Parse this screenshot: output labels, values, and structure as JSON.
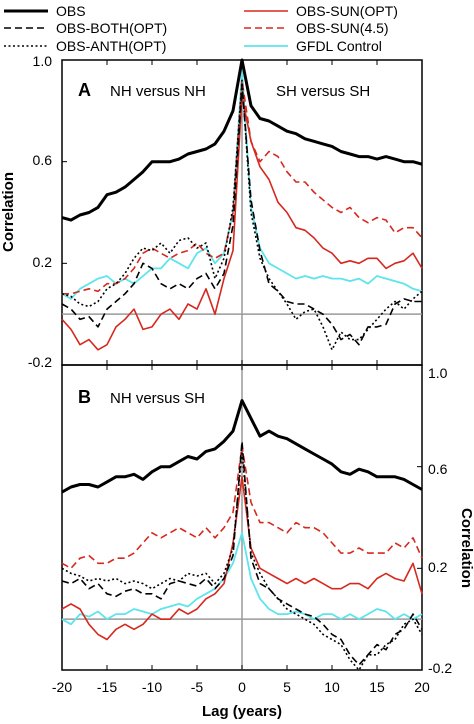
{
  "legend": [
    {
      "key": "obs",
      "label": "OBS",
      "color": "#000000",
      "dash": "",
      "width": 3
    },
    {
      "key": "both",
      "label": "OBS-BOTH(OPT)",
      "color": "#000000",
      "dash": "7,4",
      "width": 1.6
    },
    {
      "key": "anth",
      "label": "OBS-ANTH(OPT)",
      "color": "#000000",
      "dash": "2,2.5",
      "width": 1.6
    },
    {
      "key": "sun_opt",
      "label": "OBS-SUN(OPT)",
      "color": "#d7281e",
      "dash": "",
      "width": 1.6
    },
    {
      "key": "sun45",
      "label": "OBS-SUN(4.5)",
      "color": "#d7281e",
      "dash": "7,4",
      "width": 1.6
    },
    {
      "key": "gfdl",
      "label": "GFDL Control",
      "color": "#5ee4ec",
      "dash": "",
      "width": 1.8
    }
  ],
  "xlabel": "Lag (years)",
  "chart_data": [
    {
      "type": "line",
      "panel": "A",
      "annotation_left": "NH versus NH",
      "annotation_right": "SH versus SH",
      "ylabel": "Correlation",
      "ytick_labels": [
        "-0.2",
        "0.2",
        "0.6",
        "1.0"
      ],
      "xlim": [
        -20,
        20
      ],
      "ylim": [
        -0.2,
        1.0
      ],
      "x": [
        -20,
        -19,
        -18,
        -17,
        -16,
        -15,
        -14,
        -13,
        -12,
        -11,
        -10,
        -9,
        -8,
        -7,
        -6,
        -5,
        -4,
        -3,
        -2,
        -1,
        0,
        1,
        2,
        3,
        4,
        5,
        6,
        7,
        8,
        9,
        10,
        11,
        12,
        13,
        14,
        15,
        16,
        17,
        18,
        19,
        20
      ],
      "series": [
        {
          "key": "obs",
          "values": [
            0.38,
            0.37,
            0.39,
            0.4,
            0.42,
            0.47,
            0.48,
            0.5,
            0.53,
            0.56,
            0.6,
            0.6,
            0.6,
            0.61,
            0.63,
            0.64,
            0.65,
            0.67,
            0.72,
            0.8,
            1.0,
            0.82,
            0.77,
            0.76,
            0.74,
            0.72,
            0.71,
            0.69,
            0.68,
            0.67,
            0.66,
            0.64,
            0.63,
            0.62,
            0.62,
            0.61,
            0.62,
            0.61,
            0.6,
            0.6,
            0.59
          ]
        },
        {
          "key": "both",
          "values": [
            0.04,
            0.02,
            -0.02,
            -0.01,
            -0.05,
            0.02,
            0.05,
            0.08,
            0.12,
            0.2,
            0.18,
            0.12,
            0.1,
            0.12,
            0.1,
            0.14,
            0.16,
            0.1,
            0.16,
            0.35,
            0.9,
            0.45,
            0.25,
            0.12,
            0.09,
            0.05,
            0.04,
            0.04,
            0.02,
            0.0,
            -0.04,
            -0.1,
            -0.08,
            -0.12,
            -0.05,
            -0.05,
            -0.04,
            0.04,
            0.06,
            0.05,
            0.05
          ]
        },
        {
          "key": "anth",
          "values": [
            0.08,
            0.07,
            0.04,
            0.03,
            0.05,
            0.1,
            0.12,
            0.16,
            0.22,
            0.26,
            0.25,
            0.28,
            0.24,
            0.29,
            0.3,
            0.26,
            0.28,
            0.14,
            0.22,
            0.42,
            0.92,
            0.4,
            0.22,
            0.14,
            0.09,
            0.04,
            -0.02,
            0.01,
            0.02,
            -0.05,
            -0.14,
            -0.07,
            -0.1,
            -0.1,
            -0.06,
            -0.02,
            0.02,
            0.05,
            0.02,
            0.06,
            0.09
          ]
        },
        {
          "key": "sun_opt",
          "values": [
            -0.02,
            -0.06,
            -0.12,
            -0.1,
            -0.14,
            -0.12,
            -0.05,
            -0.02,
            0.02,
            -0.06,
            -0.05,
            0.0,
            0.02,
            -0.02,
            0.04,
            0.02,
            0.1,
            0.0,
            0.14,
            0.25,
            0.86,
            0.68,
            0.58,
            0.53,
            0.44,
            0.4,
            0.34,
            0.33,
            0.3,
            0.26,
            0.24,
            0.2,
            0.21,
            0.2,
            0.22,
            0.22,
            0.18,
            0.2,
            0.21,
            0.24,
            0.18
          ]
        },
        {
          "key": "sun45",
          "values": [
            0.08,
            0.08,
            0.09,
            0.1,
            0.09,
            0.12,
            0.12,
            0.14,
            0.18,
            0.24,
            0.26,
            0.24,
            0.22,
            0.24,
            0.25,
            0.28,
            0.24,
            0.22,
            0.24,
            0.4,
            0.92,
            0.68,
            0.6,
            0.64,
            0.62,
            0.56,
            0.52,
            0.52,
            0.48,
            0.45,
            0.42,
            0.4,
            0.42,
            0.38,
            0.36,
            0.38,
            0.37,
            0.32,
            0.34,
            0.34,
            0.3
          ]
        },
        {
          "key": "gfdl",
          "values": [
            0.08,
            0.06,
            0.1,
            0.12,
            0.14,
            0.15,
            0.12,
            0.14,
            0.12,
            0.15,
            0.18,
            0.18,
            0.22,
            0.2,
            0.18,
            0.24,
            0.26,
            0.2,
            0.24,
            0.4,
            0.96,
            0.42,
            0.26,
            0.2,
            0.18,
            0.16,
            0.14,
            0.15,
            0.14,
            0.15,
            0.14,
            0.14,
            0.13,
            0.14,
            0.12,
            0.15,
            0.14,
            0.13,
            0.12,
            0.1,
            0.09
          ]
        }
      ]
    },
    {
      "type": "line",
      "panel": "B",
      "annotation_left": "NH versus SH",
      "ylabel": "Correlation",
      "ytick_labels": [
        "-0.2",
        "0.2",
        "0.6",
        "1.0"
      ],
      "xlim": [
        -20,
        20
      ],
      "ylim": [
        -0.2,
        1.0
      ],
      "x": [
        -20,
        -19,
        -18,
        -17,
        -16,
        -15,
        -14,
        -13,
        -12,
        -11,
        -10,
        -9,
        -8,
        -7,
        -6,
        -5,
        -4,
        -3,
        -2,
        -1,
        0,
        1,
        2,
        3,
        4,
        5,
        6,
        7,
        8,
        9,
        10,
        11,
        12,
        13,
        14,
        15,
        16,
        17,
        18,
        19,
        20
      ],
      "series": [
        {
          "key": "obs",
          "values": [
            0.5,
            0.52,
            0.53,
            0.53,
            0.52,
            0.54,
            0.56,
            0.56,
            0.57,
            0.55,
            0.58,
            0.6,
            0.6,
            0.62,
            0.64,
            0.63,
            0.66,
            0.67,
            0.7,
            0.74,
            0.86,
            0.79,
            0.72,
            0.74,
            0.72,
            0.71,
            0.69,
            0.67,
            0.65,
            0.63,
            0.61,
            0.58,
            0.57,
            0.59,
            0.58,
            0.56,
            0.56,
            0.56,
            0.55,
            0.53,
            0.51
          ]
        },
        {
          "key": "both",
          "values": [
            0.15,
            0.14,
            0.16,
            0.12,
            0.14,
            0.1,
            0.09,
            0.11,
            0.12,
            0.1,
            0.1,
            0.08,
            0.14,
            0.15,
            0.14,
            0.13,
            0.16,
            0.12,
            0.16,
            0.25,
            0.7,
            0.24,
            0.14,
            0.12,
            0.08,
            0.06,
            0.04,
            0.02,
            0.01,
            -0.02,
            -0.06,
            -0.08,
            -0.14,
            -0.18,
            -0.14,
            -0.1,
            -0.12,
            -0.06,
            -0.04,
            0.02,
            -0.04
          ]
        },
        {
          "key": "anth",
          "values": [
            0.2,
            0.18,
            0.17,
            0.15,
            0.16,
            0.15,
            0.16,
            0.14,
            0.15,
            0.14,
            0.12,
            0.14,
            0.16,
            0.15,
            0.18,
            0.17,
            0.18,
            0.14,
            0.18,
            0.28,
            0.66,
            0.26,
            0.18,
            0.12,
            0.08,
            0.04,
            0.02,
            0.0,
            -0.02,
            -0.06,
            -0.08,
            -0.1,
            -0.16,
            -0.2,
            -0.14,
            -0.14,
            -0.1,
            -0.08,
            -0.02,
            0.0,
            -0.06
          ]
        },
        {
          "key": "sun_opt",
          "values": [
            0.04,
            0.06,
            0.04,
            -0.02,
            -0.06,
            -0.08,
            -0.04,
            -0.02,
            -0.04,
            -0.02,
            0.02,
            0.0,
            0.0,
            0.04,
            0.02,
            0.04,
            0.08,
            0.1,
            0.14,
            0.3,
            0.56,
            0.28,
            0.2,
            0.18,
            0.16,
            0.14,
            0.16,
            0.14,
            0.16,
            0.14,
            0.12,
            0.12,
            0.14,
            0.14,
            0.12,
            0.16,
            0.18,
            0.16,
            0.15,
            0.22,
            0.1
          ]
        },
        {
          "key": "sun45",
          "values": [
            0.22,
            0.2,
            0.24,
            0.25,
            0.22,
            0.22,
            0.24,
            0.24,
            0.26,
            0.3,
            0.34,
            0.32,
            0.34,
            0.36,
            0.34,
            0.32,
            0.36,
            0.32,
            0.36,
            0.42,
            0.68,
            0.46,
            0.38,
            0.38,
            0.36,
            0.34,
            0.38,
            0.36,
            0.36,
            0.34,
            0.3,
            0.26,
            0.26,
            0.28,
            0.26,
            0.26,
            0.26,
            0.3,
            0.28,
            0.32,
            0.24
          ]
        },
        {
          "key": "gfdl",
          "values": [
            0.0,
            -0.02,
            0.02,
            0.01,
            0.03,
            0.0,
            0.02,
            0.02,
            0.04,
            0.03,
            0.02,
            0.04,
            0.05,
            0.06,
            0.05,
            0.08,
            0.1,
            0.12,
            0.16,
            0.22,
            0.34,
            0.16,
            0.08,
            0.04,
            0.02,
            0.02,
            0.03,
            0.02,
            0.0,
            0.02,
            0.02,
            0.0,
            0.02,
            0.0,
            0.02,
            0.04,
            0.03,
            0.0,
            0.02,
            0.0,
            0.02
          ]
        }
      ]
    }
  ],
  "xtick_labels": [
    "-20",
    "-15",
    "-10",
    "-5",
    "0",
    "5",
    "10",
    "15",
    "20"
  ]
}
